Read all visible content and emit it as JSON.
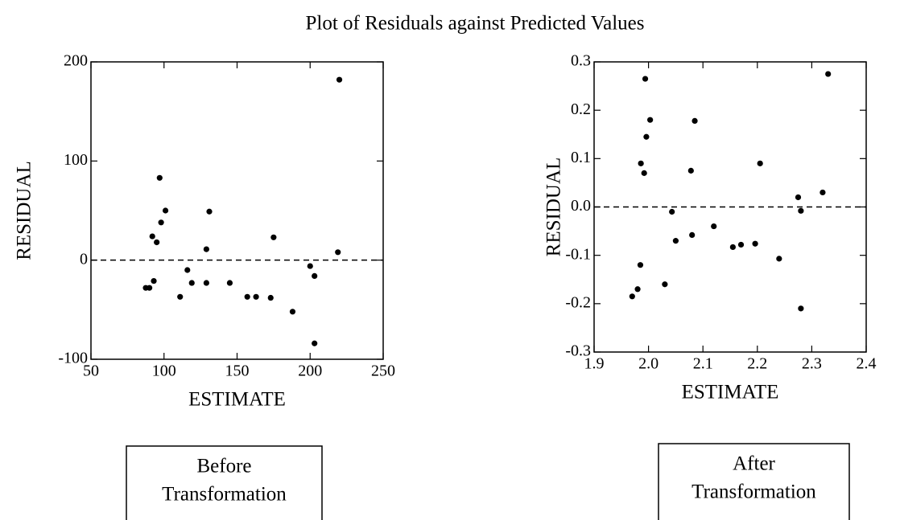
{
  "title": "Plot of Residuals against Predicted Values",
  "chart_data": [
    {
      "type": "scatter",
      "x_label": "ESTIMATE",
      "y_label": "RESIDUAL",
      "caption": [
        "Before",
        "Transformation"
      ],
      "xlim": [
        50,
        250
      ],
      "xticks": [
        50,
        100,
        150,
        200,
        250
      ],
      "ylim": [
        -100,
        200
      ],
      "yticks": [
        -100,
        0,
        100,
        200
      ],
      "reference_line": 0,
      "color": "#000000",
      "x": [
        87.5,
        90,
        93,
        92,
        95,
        97,
        98,
        101,
        111,
        116,
        119,
        129,
        129,
        131,
        145,
        157,
        163,
        173,
        175,
        188,
        200,
        203,
        203,
        219,
        220
      ],
      "values": [
        -28,
        -28,
        -21,
        24,
        18,
        83,
        38,
        50,
        -37,
        -10,
        -23,
        11,
        -23,
        49,
        -23,
        -37,
        -37,
        -38,
        23,
        -52,
        -6,
        -16,
        -84,
        8,
        182
      ]
    },
    {
      "type": "scatter",
      "x_label": "ESTIMATE",
      "y_label": "RESIDUAL",
      "caption": [
        "After",
        "Transformation"
      ],
      "xlim": [
        1.9,
        2.4
      ],
      "xticks": [
        1.9,
        {
          "value": 2,
          "label": "2.0"
        },
        2.1,
        2.2,
        2.3,
        2.4
      ],
      "ylim": [
        -0.3,
        0.3
      ],
      "yticks": [
        -0.3,
        -0.2,
        -0.1,
        {
          "value": 0,
          "label": "0.0"
        },
        0.1,
        0.2,
        0.3
      ],
      "reference_line": 0,
      "color": "#000000",
      "x": [
        1.97,
        1.98,
        1.986,
        1.992,
        1.985,
        1.994,
        1.996,
        2.003,
        2.03,
        2.043,
        2.05,
        2.078,
        2.08,
        2.085,
        2.12,
        2.155,
        2.17,
        2.196,
        2.205,
        2.24,
        2.275,
        2.28,
        2.28,
        2.32,
        2.33
      ],
      "values": [
        -0.185,
        -0.17,
        0.09,
        0.07,
        -0.12,
        0.265,
        0.145,
        0.18,
        -0.16,
        -0.01,
        -0.07,
        0.075,
        -0.058,
        0.178,
        -0.04,
        -0.083,
        -0.078,
        -0.076,
        0.09,
        -0.107,
        0.02,
        -0.008,
        -0.21,
        0.03,
        0.275
      ]
    }
  ]
}
